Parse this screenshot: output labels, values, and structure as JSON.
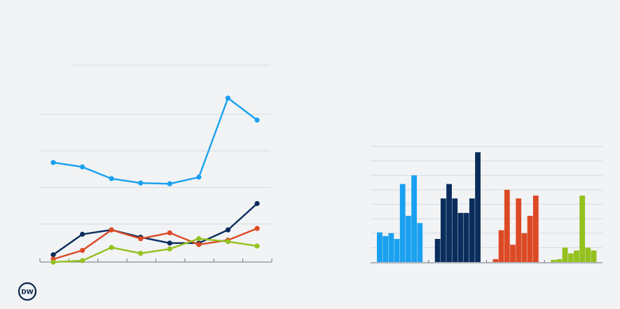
{
  "brand": {
    "logo_text": "DW",
    "logo_color": "#0a2446"
  },
  "colors": {
    "background": "#f1f3f5",
    "grid": "#d6dbe0",
    "axis": "#6b7580"
  },
  "chart_data": [
    {
      "type": "line",
      "title": "",
      "xlabel": "",
      "ylabel": "",
      "x": [
        1,
        2,
        3,
        4,
        5,
        6,
        7,
        8
      ],
      "ylim": [
        0,
        100
      ],
      "grid": true,
      "legend": "none",
      "series": [
        {
          "color": "#1aa0f0",
          "values": [
            67,
            64,
            56,
            53,
            52.5,
            57,
            111,
            96
          ]
        },
        {
          "color": "#0a2d5c",
          "values": [
            4,
            18,
            21,
            16,
            12,
            12,
            21,
            39
          ]
        },
        {
          "color": "#dc4a25",
          "values": [
            1,
            7,
            21,
            15,
            19,
            11,
            14,
            22
          ]
        },
        {
          "color": "#94c11f",
          "values": [
            -1,
            0,
            9,
            5,
            8,
            15,
            13,
            10
          ]
        }
      ]
    },
    {
      "type": "bar",
      "title": "",
      "xlabel": "",
      "ylabel": "",
      "ylim": [
        0,
        8
      ],
      "grid": true,
      "legend": "none",
      "groups": [
        {
          "color": "#1aa0f0",
          "values": [
            2.05,
            1.8,
            2.0,
            1.6,
            5.4,
            3.2,
            6.0,
            2.7
          ]
        },
        {
          "color": "#0a2d5c",
          "values": [
            1.6,
            4.4,
            5.4,
            4.4,
            3.4,
            3.4,
            4.4,
            7.6
          ]
        },
        {
          "color": "#dc4a25",
          "values": [
            0.2,
            2.2,
            5.0,
            1.2,
            4.4,
            2.0,
            3.2,
            4.6
          ]
        },
        {
          "color": "#94c11f",
          "values": [
            0.15,
            0.2,
            1.0,
            0.6,
            0.8,
            4.6,
            1.0,
            0.8
          ]
        }
      ]
    }
  ]
}
